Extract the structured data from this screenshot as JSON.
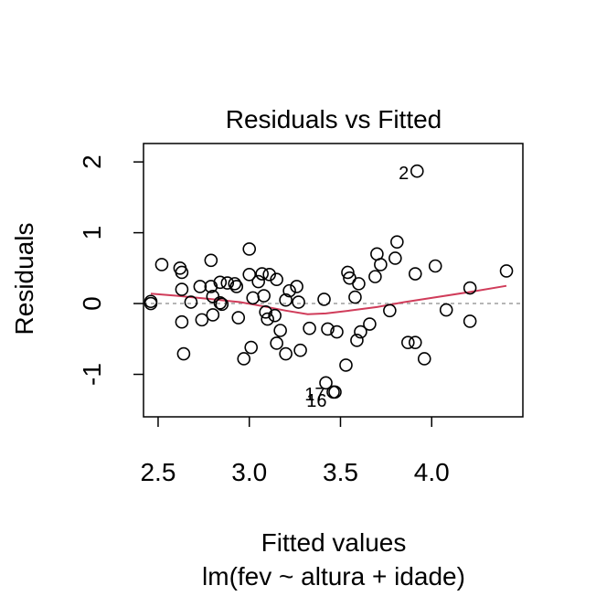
{
  "chart_data": {
    "type": "scatter",
    "title": "Residuals vs Fitted",
    "xlabel": "Fitted values",
    "subtitle": "lm(fev ~ altura + idade)",
    "ylabel": "Residuals",
    "xlim": [
      2.42,
      4.5
    ],
    "ylim": [
      -1.6,
      2.26
    ],
    "x_ticks": [
      2.5,
      3.0,
      3.5,
      4.0
    ],
    "x_tick_labels": [
      "2.5",
      "3.0",
      "3.5",
      "4.0"
    ],
    "y_ticks": [
      -1,
      0,
      1,
      2
    ],
    "y_tick_labels": [
      "-1",
      "0",
      "1",
      "2"
    ],
    "zero_line": {
      "y": 0,
      "color": "#9e9e9e",
      "style": "dashed"
    },
    "point_color": "#000000",
    "smooth_color": "#d03c5a",
    "points": [
      {
        "x": 2.46,
        "y": 0.03
      },
      {
        "x": 2.46,
        "y": 0.0
      },
      {
        "x": 2.52,
        "y": 0.55
      },
      {
        "x": 2.62,
        "y": 0.5
      },
      {
        "x": 2.63,
        "y": 0.44
      },
      {
        "x": 2.63,
        "y": 0.2
      },
      {
        "x": 2.63,
        "y": -0.26
      },
      {
        "x": 2.64,
        "y": -0.71
      },
      {
        "x": 2.68,
        "y": 0.02
      },
      {
        "x": 2.73,
        "y": 0.24
      },
      {
        "x": 2.74,
        "y": -0.23
      },
      {
        "x": 2.79,
        "y": 0.61
      },
      {
        "x": 2.79,
        "y": 0.24
      },
      {
        "x": 2.8,
        "y": 0.1
      },
      {
        "x": 2.8,
        "y": -0.16
      },
      {
        "x": 2.84,
        "y": 0.3
      },
      {
        "x": 2.84,
        "y": 0.01
      },
      {
        "x": 2.85,
        "y": -0.01
      },
      {
        "x": 2.88,
        "y": 0.29
      },
      {
        "x": 2.92,
        "y": 0.28
      },
      {
        "x": 2.93,
        "y": 0.24
      },
      {
        "x": 2.94,
        "y": -0.2
      },
      {
        "x": 2.97,
        "y": -0.78
      },
      {
        "x": 3.0,
        "y": 0.77
      },
      {
        "x": 3.0,
        "y": 0.41
      },
      {
        "x": 3.01,
        "y": -0.62
      },
      {
        "x": 3.02,
        "y": 0.08
      },
      {
        "x": 3.05,
        "y": 0.31
      },
      {
        "x": 3.07,
        "y": 0.42
      },
      {
        "x": 3.08,
        "y": 0.11
      },
      {
        "x": 3.09,
        "y": -0.12
      },
      {
        "x": 3.1,
        "y": -0.22
      },
      {
        "x": 3.11,
        "y": 0.41
      },
      {
        "x": 3.14,
        "y": -0.17
      },
      {
        "x": 3.15,
        "y": 0.34
      },
      {
        "x": 3.15,
        "y": -0.56
      },
      {
        "x": 3.17,
        "y": -0.38
      },
      {
        "x": 3.2,
        "y": 0.05
      },
      {
        "x": 3.2,
        "y": -0.71
      },
      {
        "x": 3.22,
        "y": 0.18
      },
      {
        "x": 3.26,
        "y": 0.24
      },
      {
        "x": 3.27,
        "y": 0.02
      },
      {
        "x": 3.28,
        "y": -0.66
      },
      {
        "x": 3.33,
        "y": -0.35
      },
      {
        "x": 3.41,
        "y": 0.06
      },
      {
        "x": 3.42,
        "y": -1.12
      },
      {
        "x": 3.43,
        "y": -0.36
      },
      {
        "x": 3.46,
        "y": -1.25
      },
      {
        "x": 3.47,
        "y": -1.25
      },
      {
        "x": 3.48,
        "y": -0.4
      },
      {
        "x": 3.53,
        "y": -0.87
      },
      {
        "x": 3.54,
        "y": 0.44
      },
      {
        "x": 3.55,
        "y": 0.36
      },
      {
        "x": 3.58,
        "y": 0.09
      },
      {
        "x": 3.59,
        "y": -0.52
      },
      {
        "x": 3.6,
        "y": 0.28
      },
      {
        "x": 3.61,
        "y": -0.4
      },
      {
        "x": 3.66,
        "y": -0.29
      },
      {
        "x": 3.69,
        "y": 0.38
      },
      {
        "x": 3.7,
        "y": 0.7
      },
      {
        "x": 3.72,
        "y": 0.55
      },
      {
        "x": 3.77,
        "y": -0.1
      },
      {
        "x": 3.8,
        "y": 0.64
      },
      {
        "x": 3.81,
        "y": 0.87
      },
      {
        "x": 3.87,
        "y": -0.55
      },
      {
        "x": 3.91,
        "y": -0.55
      },
      {
        "x": 3.91,
        "y": 0.42
      },
      {
        "x": 3.92,
        "y": 1.87
      },
      {
        "x": 3.96,
        "y": -0.78
      },
      {
        "x": 4.02,
        "y": 0.53
      },
      {
        "x": 4.08,
        "y": -0.09
      },
      {
        "x": 4.21,
        "y": 0.22
      },
      {
        "x": 4.21,
        "y": -0.25
      },
      {
        "x": 4.41,
        "y": 0.46
      }
    ],
    "smooth_line": [
      {
        "x": 2.46,
        "y": 0.14
      },
      {
        "x": 2.6,
        "y": 0.11
      },
      {
        "x": 2.8,
        "y": 0.06
      },
      {
        "x": 2.95,
        "y": 0.02
      },
      {
        "x": 3.08,
        "y": -0.04
      },
      {
        "x": 3.2,
        "y": -0.1
      },
      {
        "x": 3.32,
        "y": -0.15
      },
      {
        "x": 3.42,
        "y": -0.14
      },
      {
        "x": 3.55,
        "y": -0.1
      },
      {
        "x": 3.7,
        "y": -0.05
      },
      {
        "x": 3.85,
        "y": 0.02
      },
      {
        "x": 4.0,
        "y": 0.08
      },
      {
        "x": 4.2,
        "y": 0.16
      },
      {
        "x": 4.41,
        "y": 0.25
      }
    ],
    "annotations": [
      {
        "text": "2",
        "x": 3.92,
        "y": 1.87,
        "side": "left"
      },
      {
        "text": "17",
        "x": 3.46,
        "y": -1.25,
        "side": "left"
      },
      {
        "text": "16",
        "x": 3.47,
        "y": -1.25,
        "side": "left-below"
      }
    ]
  }
}
